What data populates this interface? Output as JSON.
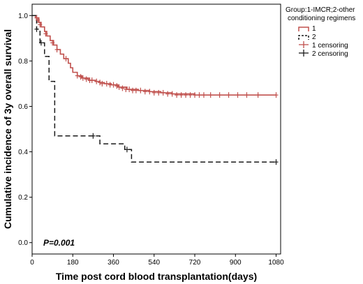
{
  "chart_data": {
    "type": "line",
    "subtype": "kaplan-meier",
    "title": "",
    "xlabel": "Time post cord blood transplantation(days)",
    "ylabel": "Cumulative incidence of 3y overall survival",
    "xlim": [
      0,
      1100
    ],
    "ylim": [
      -0.05,
      1.05
    ],
    "x_ticks": [
      0,
      180,
      360,
      540,
      720,
      900,
      1080
    ],
    "y_ticks": [
      0.0,
      0.2,
      0.4,
      0.6,
      0.8,
      1.0
    ],
    "y_tick_labels": [
      "0.0",
      "0.2",
      "0.4",
      "0.6",
      "0.8",
      "1.0"
    ],
    "grid": false,
    "legend_position": "right, outside plot",
    "legend": {
      "title_line1": "Group:1-IMCR;2-other",
      "title_line2": "conditioning regimens",
      "entries": [
        "1",
        "2",
        "1 censoring",
        "2 censoring"
      ]
    },
    "annotation": "P=0.001",
    "colors": {
      "group1": "#c0504d",
      "group2": "#1a1a1a"
    },
    "series": [
      {
        "name": "1",
        "style": "solid",
        "x": [
          0,
          15,
          30,
          40,
          55,
          65,
          80,
          95,
          110,
          125,
          140,
          160,
          170,
          180,
          200,
          220,
          250,
          280,
          300,
          320,
          350,
          380,
          420,
          470,
          520,
          570,
          620,
          720,
          1080
        ],
        "y": [
          1.0,
          0.99,
          0.97,
          0.95,
          0.93,
          0.91,
          0.89,
          0.87,
          0.85,
          0.83,
          0.81,
          0.79,
          0.77,
          0.75,
          0.735,
          0.725,
          0.715,
          0.71,
          0.705,
          0.7,
          0.695,
          0.685,
          0.675,
          0.67,
          0.665,
          0.66,
          0.655,
          0.65,
          0.65
        ]
      },
      {
        "name": "2",
        "style": "dashed",
        "x": [
          0,
          20,
          35,
          55,
          75,
          100,
          180,
          290,
          300,
          400,
          410,
          420,
          440,
          1080
        ],
        "y": [
          1.0,
          0.94,
          0.88,
          0.82,
          0.71,
          0.47,
          0.47,
          0.47,
          0.435,
          0.435,
          0.41,
          0.41,
          0.355,
          0.355
        ]
      }
    ],
    "censoring": [
      {
        "name": "1 censoring",
        "x": [
          20,
          25,
          35,
          60,
          90,
          110,
          150,
          200,
          215,
          225,
          240,
          255,
          265,
          285,
          300,
          310,
          330,
          345,
          360,
          375,
          385,
          400,
          415,
          430,
          445,
          460,
          480,
          500,
          520,
          540,
          560,
          580,
          600,
          620,
          640,
          660,
          680,
          700,
          720,
          740,
          760,
          790,
          830,
          870,
          910,
          950,
          1000,
          1080
        ],
        "y": [
          0.99,
          0.98,
          0.96,
          0.92,
          0.88,
          0.85,
          0.81,
          0.735,
          0.73,
          0.725,
          0.72,
          0.715,
          0.715,
          0.71,
          0.705,
          0.7,
          0.7,
          0.695,
          0.695,
          0.69,
          0.685,
          0.68,
          0.675,
          0.675,
          0.67,
          0.67,
          0.67,
          0.665,
          0.665,
          0.66,
          0.66,
          0.66,
          0.655,
          0.655,
          0.65,
          0.65,
          0.65,
          0.65,
          0.65,
          0.65,
          0.65,
          0.65,
          0.65,
          0.65,
          0.65,
          0.65,
          0.65,
          0.65
        ]
      },
      {
        "name": "2 censoring",
        "x": [
          20,
          40,
          270,
          420,
          1080
        ],
        "y": [
          0.94,
          0.88,
          0.47,
          0.41,
          0.355
        ]
      }
    ]
  }
}
